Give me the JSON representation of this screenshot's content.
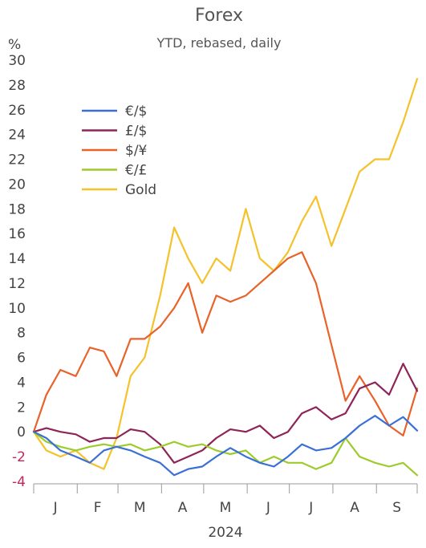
{
  "chart_data": {
    "type": "line",
    "title": "Forex",
    "subtitle": "YTD, rebased, daily",
    "ylabel": "%",
    "xlabel": "2024",
    "ylim": [
      -4,
      30
    ],
    "yticks": [
      -4,
      -2,
      0,
      2,
      4,
      6,
      8,
      10,
      12,
      14,
      16,
      18,
      20,
      22,
      24,
      26,
      28,
      30
    ],
    "x_range": [
      "2024-01-01",
      "2024-09-30"
    ],
    "month_labels": [
      "J",
      "F",
      "M",
      "A",
      "M",
      "J",
      "J",
      "A",
      "S"
    ],
    "legend_position": "upper-left",
    "grid": false,
    "series": [
      {
        "name": "€/$",
        "color": "#3a6fd8",
        "x": [
          "2024-01-01",
          "2024-01-10",
          "2024-01-20",
          "2024-01-31",
          "2024-02-10",
          "2024-02-20",
          "2024-02-29",
          "2024-03-10",
          "2024-03-20",
          "2024-03-31",
          "2024-04-10",
          "2024-04-20",
          "2024-04-30",
          "2024-05-10",
          "2024-05-20",
          "2024-05-31",
          "2024-06-10",
          "2024-06-20",
          "2024-06-30",
          "2024-07-10",
          "2024-07-20",
          "2024-07-31",
          "2024-08-10",
          "2024-08-20",
          "2024-08-31",
          "2024-09-10",
          "2024-09-20",
          "2024-09-30"
        ],
        "y": [
          0,
          -0.5,
          -1.5,
          -2.0,
          -2.5,
          -1.5,
          -1.2,
          -1.5,
          -2.0,
          -2.5,
          -3.5,
          -3.0,
          -2.8,
          -2.0,
          -1.3,
          -2.0,
          -2.5,
          -2.8,
          -2.0,
          -1.0,
          -1.5,
          -1.3,
          -0.5,
          0.5,
          1.3,
          0.5,
          1.2,
          0.1
        ]
      },
      {
        "name": "£/$",
        "color": "#8e2457",
        "x": [
          "2024-01-01",
          "2024-01-10",
          "2024-01-20",
          "2024-01-31",
          "2024-02-10",
          "2024-02-20",
          "2024-02-29",
          "2024-03-10",
          "2024-03-20",
          "2024-03-31",
          "2024-04-10",
          "2024-04-20",
          "2024-04-30",
          "2024-05-10",
          "2024-05-20",
          "2024-05-31",
          "2024-06-10",
          "2024-06-20",
          "2024-06-30",
          "2024-07-10",
          "2024-07-20",
          "2024-07-31",
          "2024-08-10",
          "2024-08-20",
          "2024-08-31",
          "2024-09-10",
          "2024-09-20",
          "2024-09-30"
        ],
        "y": [
          0,
          0.3,
          0,
          -0.2,
          -0.8,
          -0.5,
          -0.5,
          0.2,
          0,
          -1.0,
          -2.5,
          -2.0,
          -1.5,
          -0.5,
          0.2,
          0,
          0.5,
          -0.5,
          0,
          1.5,
          2.0,
          1.0,
          1.5,
          3.5,
          4.0,
          3.0,
          5.5,
          3.3
        ]
      },
      {
        "name": "$/¥",
        "color": "#e8622a",
        "x": [
          "2024-01-01",
          "2024-01-10",
          "2024-01-20",
          "2024-01-31",
          "2024-02-10",
          "2024-02-20",
          "2024-02-29",
          "2024-03-10",
          "2024-03-20",
          "2024-03-31",
          "2024-04-10",
          "2024-04-20",
          "2024-04-30",
          "2024-05-10",
          "2024-05-20",
          "2024-05-31",
          "2024-06-10",
          "2024-06-20",
          "2024-06-30",
          "2024-07-10",
          "2024-07-20",
          "2024-07-31",
          "2024-08-10",
          "2024-08-20",
          "2024-08-31",
          "2024-09-10",
          "2024-09-20",
          "2024-09-30"
        ],
        "y": [
          0,
          3.0,
          5.0,
          4.5,
          6.8,
          6.5,
          4.5,
          7.5,
          7.5,
          8.5,
          10.0,
          12.0,
          8.0,
          11.0,
          10.5,
          11.0,
          12.0,
          13.0,
          14.0,
          14.5,
          12.0,
          7.0,
          2.5,
          4.5,
          2.5,
          0.5,
          -0.3,
          3.5
        ]
      },
      {
        "name": "€/£",
        "color": "#9ccc2a",
        "x": [
          "2024-01-01",
          "2024-01-10",
          "2024-01-20",
          "2024-01-31",
          "2024-02-10",
          "2024-02-20",
          "2024-02-29",
          "2024-03-10",
          "2024-03-20",
          "2024-03-31",
          "2024-04-10",
          "2024-04-20",
          "2024-04-30",
          "2024-05-10",
          "2024-05-20",
          "2024-05-31",
          "2024-06-10",
          "2024-06-20",
          "2024-06-30",
          "2024-07-10",
          "2024-07-20",
          "2024-07-31",
          "2024-08-10",
          "2024-08-20",
          "2024-08-31",
          "2024-09-10",
          "2024-09-20",
          "2024-09-30"
        ],
        "y": [
          0,
          -0.8,
          -1.2,
          -1.5,
          -1.2,
          -1.0,
          -1.2,
          -1.0,
          -1.5,
          -1.2,
          -0.8,
          -1.2,
          -1.0,
          -1.5,
          -1.8,
          -1.5,
          -2.5,
          -2.0,
          -2.5,
          -2.5,
          -3.0,
          -2.5,
          -0.5,
          -2.0,
          -2.5,
          -2.8,
          -2.5,
          -3.5
        ]
      },
      {
        "name": "Gold",
        "color": "#f4c22a",
        "x": [
          "2024-01-01",
          "2024-01-10",
          "2024-01-20",
          "2024-01-31",
          "2024-02-10",
          "2024-02-20",
          "2024-02-29",
          "2024-03-10",
          "2024-03-20",
          "2024-03-31",
          "2024-04-10",
          "2024-04-20",
          "2024-04-30",
          "2024-05-10",
          "2024-05-20",
          "2024-05-31",
          "2024-06-10",
          "2024-06-20",
          "2024-06-30",
          "2024-07-10",
          "2024-07-20",
          "2024-07-31",
          "2024-08-10",
          "2024-08-20",
          "2024-08-31",
          "2024-09-10",
          "2024-09-20",
          "2024-09-30"
        ],
        "y": [
          0,
          -1.5,
          -2.0,
          -1.5,
          -2.5,
          -3.0,
          -0.5,
          4.5,
          6.0,
          11.0,
          16.5,
          14.0,
          12.0,
          14.0,
          13.0,
          18.0,
          14.0,
          13.0,
          14.5,
          17.0,
          19.0,
          15.0,
          18.0,
          21.0,
          22.0,
          22.0,
          25.0,
          28.5
        ]
      }
    ]
  }
}
